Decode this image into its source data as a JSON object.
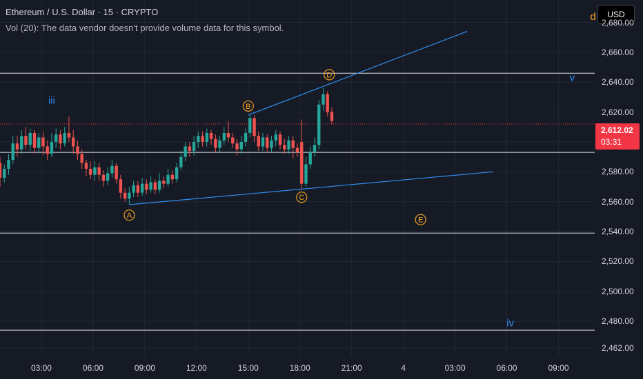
{
  "header": {
    "title": "Ethereum / U.S. Dollar · 15 · CRYPTO",
    "volume_note": "Vol (20): The data vendor doesn't provide volume data for this symbol."
  },
  "currency_button": "USD",
  "price_tag": {
    "value": "2,612.02",
    "countdown": "03:31"
  },
  "colors": {
    "background": "#161a25",
    "up": "#26a69a",
    "down": "#ef5350",
    "wave": "#f7a21b",
    "trend": "#2f8ff0",
    "hline": "#e0e3eb",
    "price_line": "#f23645"
  },
  "chart_data": {
    "type": "candlestick",
    "y_ticks": [
      2680,
      2660,
      2640,
      2620,
      2600,
      2580,
      2560,
      2540,
      2520,
      2500,
      2480,
      2462
    ],
    "y_tick_labels": [
      "2,680.00",
      "2,660.00",
      "2,640.00",
      "2,620.00",
      "2,600.00",
      "2,580.00",
      "2,560.00",
      "2,540.00",
      "2,520.00",
      "2,500.00",
      "2,480.00",
      "2,462.00"
    ],
    "x_ticks": [
      {
        "label": "03:00",
        "t": 3
      },
      {
        "label": "06:00",
        "t": 6
      },
      {
        "label": "09:00",
        "t": 9
      },
      {
        "label": "12:00",
        "t": 12
      },
      {
        "label": "15:00",
        "t": 15
      },
      {
        "label": "18:00",
        "t": 18
      },
      {
        "label": "21:00",
        "t": 21
      },
      {
        "label": "4",
        "t": 24
      },
      {
        "label": "03:00",
        "t": 27
      },
      {
        "label": "06:00",
        "t": 30
      },
      {
        "label": "09:00",
        "t": 33
      }
    ],
    "y_range": [
      2457,
      2695
    ],
    "x_range": [
      0.6,
      35.1
    ],
    "current_price": 2612.02,
    "horizontal_levels": [
      2646,
      2593,
      2539,
      2474
    ],
    "trendlines": [
      {
        "from": [
          8.1,
          2558
        ],
        "to": [
          18.9,
          2568
        ],
        "extend_to": [
          29.2,
          2580
        ]
      },
      {
        "from": [
          15.0,
          2618
        ],
        "to": [
          19.4,
          2636
        ],
        "extend_to": [
          27.7,
          2674
        ]
      }
    ],
    "wave_labels": [
      {
        "text": "A",
        "t": 8.1,
        "p": 2551,
        "circled": true
      },
      {
        "text": "B",
        "t": 15.0,
        "p": 2624,
        "circled": true
      },
      {
        "text": "C",
        "t": 18.1,
        "p": 2563,
        "circled": true
      },
      {
        "text": "D",
        "t": 19.7,
        "p": 2645,
        "circled": true
      },
      {
        "text": "E",
        "t": 25.0,
        "p": 2548,
        "circled": true
      },
      {
        "text": "iii",
        "t": 3.6,
        "p": 2628,
        "circled": false
      },
      {
        "text": "iv",
        "t": 30.2,
        "p": 2479,
        "circled": false
      },
      {
        "text": "v",
        "t": 33.8,
        "p": 2643,
        "circled": false
      },
      {
        "text": "d",
        "t": 35.0,
        "p": 2684,
        "circled": false
      }
    ],
    "candles": [
      [
        0.6,
        2586,
        2576,
        2590,
        2570
      ],
      [
        0.85,
        2576,
        2582,
        2585,
        2573
      ],
      [
        1.1,
        2582,
        2588,
        2592,
        2578
      ],
      [
        1.35,
        2588,
        2599,
        2604,
        2585
      ],
      [
        1.6,
        2599,
        2595,
        2604,
        2590
      ],
      [
        1.85,
        2595,
        2604,
        2608,
        2592
      ],
      [
        2.1,
        2604,
        2598,
        2610,
        2595
      ],
      [
        2.35,
        2598,
        2606,
        2609,
        2594
      ],
      [
        2.6,
        2606,
        2596,
        2608,
        2592
      ],
      [
        2.85,
        2596,
        2603,
        2606,
        2593
      ],
      [
        3.1,
        2603,
        2597,
        2607,
        2591
      ],
      [
        3.35,
        2597,
        2592,
        2601,
        2588
      ],
      [
        3.6,
        2592,
        2600,
        2606,
        2590
      ],
      [
        3.85,
        2600,
        2605,
        2609,
        2596
      ],
      [
        4.1,
        2605,
        2599,
        2608,
        2595
      ],
      [
        4.35,
        2599,
        2606,
        2610,
        2597
      ],
      [
        4.6,
        2606,
        2603,
        2617,
        2600
      ],
      [
        4.85,
        2603,
        2597,
        2608,
        2592
      ],
      [
        5.1,
        2597,
        2592,
        2601,
        2588
      ],
      [
        5.35,
        2592,
        2586,
        2595,
        2582
      ],
      [
        5.6,
        2586,
        2582,
        2588,
        2577
      ],
      [
        5.85,
        2582,
        2578,
        2587,
        2575
      ],
      [
        6.1,
        2578,
        2583,
        2587,
        2574
      ],
      [
        6.35,
        2583,
        2578,
        2586,
        2574
      ],
      [
        6.6,
        2578,
        2574,
        2581,
        2570
      ],
      [
        6.85,
        2574,
        2579,
        2583,
        2571
      ],
      [
        7.1,
        2579,
        2584,
        2588,
        2576
      ],
      [
        7.35,
        2584,
        2575,
        2586,
        2572
      ],
      [
        7.6,
        2575,
        2566,
        2578,
        2562
      ],
      [
        7.85,
        2566,
        2562,
        2569,
        2560
      ],
      [
        8.1,
        2562,
        2566,
        2570,
        2558
      ],
      [
        8.35,
        2566,
        2571,
        2574,
        2563
      ],
      [
        8.6,
        2571,
        2566,
        2574,
        2563
      ],
      [
        8.85,
        2566,
        2572,
        2576,
        2564
      ],
      [
        9.1,
        2572,
        2568,
        2575,
        2565
      ],
      [
        9.35,
        2568,
        2573,
        2577,
        2566
      ],
      [
        9.6,
        2573,
        2568,
        2575,
        2565
      ],
      [
        9.85,
        2568,
        2574,
        2579,
        2566
      ],
      [
        10.1,
        2574,
        2572,
        2577,
        2569
      ],
      [
        10.35,
        2572,
        2578,
        2582,
        2570
      ],
      [
        10.6,
        2578,
        2575,
        2581,
        2572
      ],
      [
        10.85,
        2575,
        2583,
        2586,
        2573
      ],
      [
        11.1,
        2583,
        2590,
        2594,
        2581
      ],
      [
        11.35,
        2590,
        2597,
        2600,
        2587
      ],
      [
        11.6,
        2597,
        2594,
        2600,
        2590
      ],
      [
        11.85,
        2594,
        2600,
        2604,
        2591
      ],
      [
        12.1,
        2600,
        2604,
        2607,
        2596
      ],
      [
        12.35,
        2604,
        2600,
        2607,
        2597
      ],
      [
        12.6,
        2600,
        2606,
        2609,
        2597
      ],
      [
        12.85,
        2606,
        2602,
        2608,
        2598
      ],
      [
        13.1,
        2602,
        2596,
        2605,
        2593
      ],
      [
        13.35,
        2596,
        2601,
        2604,
        2593
      ],
      [
        13.6,
        2601,
        2606,
        2610,
        2598
      ],
      [
        13.85,
        2606,
        2603,
        2614,
        2600
      ],
      [
        14.1,
        2603,
        2599,
        2606,
        2596
      ],
      [
        14.35,
        2599,
        2595,
        2602,
        2591
      ],
      [
        14.6,
        2595,
        2600,
        2604,
        2592
      ],
      [
        14.85,
        2600,
        2606,
        2609,
        2597
      ],
      [
        15.1,
        2606,
        2616,
        2618,
        2603
      ],
      [
        15.35,
        2616,
        2604,
        2618,
        2600
      ],
      [
        15.6,
        2604,
        2597,
        2607,
        2594
      ],
      [
        15.85,
        2597,
        2603,
        2606,
        2594
      ],
      [
        16.1,
        2603,
        2596,
        2605,
        2593
      ],
      [
        16.35,
        2596,
        2601,
        2604,
        2593
      ],
      [
        16.6,
        2601,
        2605,
        2608,
        2597
      ],
      [
        16.85,
        2605,
        2598,
        2607,
        2595
      ],
      [
        17.1,
        2598,
        2595,
        2602,
        2592
      ],
      [
        17.35,
        2595,
        2601,
        2604,
        2592
      ],
      [
        17.6,
        2601,
        2596,
        2604,
        2589
      ],
      [
        17.85,
        2596,
        2593,
        2599,
        2590
      ],
      [
        18.1,
        2600,
        2572,
        2615,
        2568
      ],
      [
        18.35,
        2572,
        2585,
        2590,
        2570
      ],
      [
        18.6,
        2585,
        2593,
        2597,
        2582
      ],
      [
        18.85,
        2593,
        2598,
        2603,
        2590
      ],
      [
        19.1,
        2598,
        2625,
        2628,
        2595
      ],
      [
        19.35,
        2625,
        2632,
        2636,
        2621
      ],
      [
        19.6,
        2632,
        2620,
        2634,
        2617
      ],
      [
        19.85,
        2620,
        2614,
        2623,
        2612
      ]
    ]
  }
}
